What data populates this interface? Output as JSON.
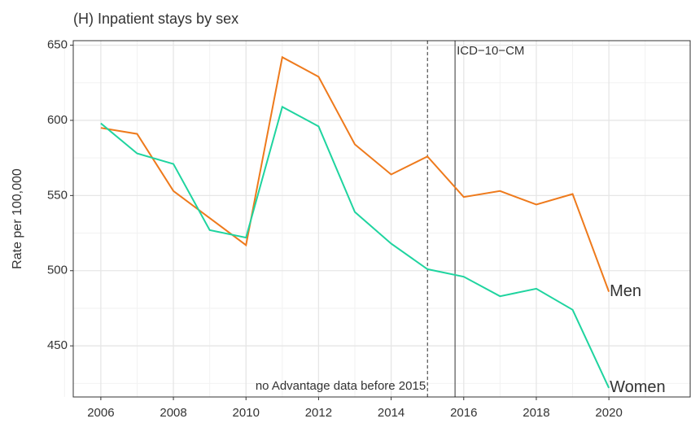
{
  "chart_data": {
    "type": "line",
    "title": "(H) Inpatient stays by sex",
    "y_label": "Rate per 100,000",
    "x": [
      2006,
      2007,
      2008,
      2009,
      2010,
      2011,
      2012,
      2013,
      2014,
      2015,
      2016,
      2017,
      2018,
      2019,
      2020
    ],
    "series": [
      {
        "name": "Men",
        "color": "#ee7a1c",
        "values": [
          595,
          591,
          553,
          535,
          517,
          642,
          629,
          584,
          564,
          576,
          549,
          553,
          544,
          551,
          486
        ]
      },
      {
        "name": "Women",
        "color": "#1fd49f",
        "values": [
          598,
          578,
          571,
          527,
          522,
          609,
          596,
          539,
          518,
          501,
          496,
          483,
          488,
          474,
          422
        ]
      }
    ],
    "xlim": [
      2005.24,
      2022.24
    ],
    "ylim": [
      416,
      653
    ],
    "xticks": [
      2006,
      2008,
      2010,
      2012,
      2014,
      2016,
      2018,
      2020
    ],
    "yticks": [
      450,
      500,
      550,
      600,
      650
    ],
    "x_minor_ticks": [
      2005,
      2007,
      2009,
      2011,
      2013,
      2015,
      2017,
      2019,
      2021
    ],
    "y_minor_ticks": [
      425,
      475,
      525,
      575,
      625
    ],
    "grid": true,
    "vlines": [
      {
        "x": 2015,
        "style": "dashed",
        "label": "no Advantage data before 2015"
      },
      {
        "x": 2015.76,
        "style": "solid",
        "label": "ICD−10−CM"
      }
    ]
  }
}
